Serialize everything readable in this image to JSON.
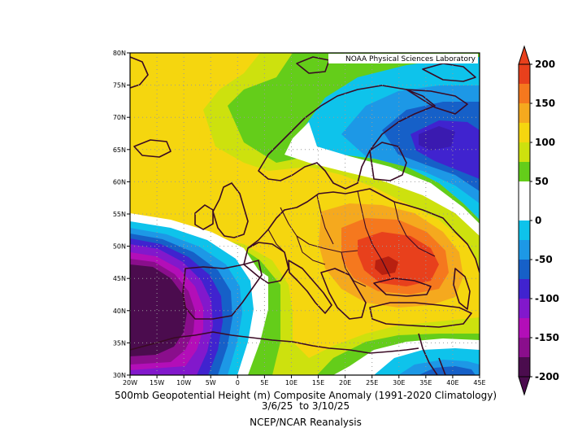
{
  "map": {
    "credit": "NOAA Physical Sciences Laboratory",
    "lat_labels": [
      "80N",
      "75N",
      "70N",
      "65N",
      "60N",
      "55N",
      "50N",
      "45N",
      "40N",
      "35N",
      "30N"
    ],
    "lon_labels": [
      "20W",
      "15W",
      "10W",
      "5W",
      "0",
      "5E",
      "10E",
      "15E",
      "20E",
      "25E",
      "30E",
      "35E",
      "40E",
      "45E"
    ],
    "extent": {
      "lon": [
        -20,
        45
      ],
      "lat": [
        30,
        80
      ]
    },
    "grid": true
  },
  "colorbar": {
    "labels": [
      "200",
      "150",
      "100",
      "50",
      "0",
      "-50",
      "-100",
      "-150",
      "-200"
    ],
    "bins": [
      {
        "range": "150 to 200",
        "color": "#e8401c"
      },
      {
        "range": "125 to 150",
        "color": "#f5781e"
      },
      {
        "range": "100 to 125",
        "color": "#f5a91e"
      },
      {
        "range": "75 to 100",
        "color": "#f5d60f"
      },
      {
        "range": "50 to 75",
        "color": "#cde10e"
      },
      {
        "range": "25 to 50",
        "color": "#64cd1a"
      },
      {
        "range": "0 to 25",
        "color": "#ffffff"
      },
      {
        "range": "-25 to 0",
        "color": "#ffffff"
      },
      {
        "range": "-50 to -25",
        "color": "#0ec3eb"
      },
      {
        "range": "-75 to -50",
        "color": "#1d98e6"
      },
      {
        "range": "-100 to -75",
        "color": "#1660c8"
      },
      {
        "range": "-125 to -100",
        "color": "#4023cf"
      },
      {
        "range": "-150 to -125",
        "color": "#8218cc"
      },
      {
        "range": "-175 to -150",
        "color": "#b30eb8"
      },
      {
        "range": "-200 to -175",
        "color": "#8a0e8c"
      },
      {
        "range": "below -200",
        "color": "#4b0c4e"
      }
    ]
  },
  "captions": {
    "title": "500mb Geopotential Height (m) Composite Anomaly (1991-2020 Climatology)",
    "dates": "3/6/25  to 3/10/25",
    "source": "NCEP/NCAR Reanalysis"
  },
  "colors": {
    "coast": "#3a0a24",
    "grid": "#9a9a9a"
  }
}
